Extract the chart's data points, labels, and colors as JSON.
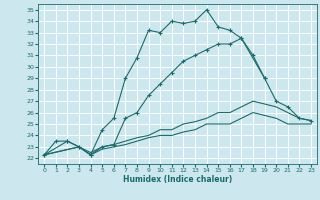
{
  "xlabel": "Humidex (Indice chaleur)",
  "background_color": "#cce8ee",
  "grid_color": "#ffffff",
  "line_color": "#1a6b6b",
  "xlim": [
    -0.5,
    23.5
  ],
  "ylim": [
    21.5,
    35.5
  ],
  "xticks": [
    0,
    1,
    2,
    3,
    4,
    5,
    6,
    7,
    8,
    9,
    10,
    11,
    12,
    13,
    14,
    15,
    16,
    17,
    18,
    19,
    20,
    21,
    22,
    23
  ],
  "yticks": [
    22,
    23,
    24,
    25,
    26,
    27,
    28,
    29,
    30,
    31,
    32,
    33,
    34,
    35
  ],
  "series": [
    {
      "x": [
        0,
        1,
        2,
        3,
        4,
        5,
        6,
        7,
        8,
        9,
        10,
        11,
        12,
        13,
        14,
        15,
        16,
        17,
        18,
        19
      ],
      "y": [
        22.3,
        23.5,
        23.5,
        23.0,
        22.3,
        24.5,
        25.5,
        29.0,
        30.8,
        33.2,
        33.0,
        34.0,
        33.8,
        34.0,
        35.0,
        33.5,
        33.2,
        32.5,
        31.0,
        29.0
      ],
      "marker": true,
      "linestyle": "-"
    },
    {
      "x": [
        0,
        2,
        3,
        4,
        5,
        6,
        7,
        8,
        9,
        10,
        11,
        12,
        13,
        14,
        15,
        16,
        17,
        19,
        20,
        21,
        22,
        23
      ],
      "y": [
        22.3,
        23.5,
        23.0,
        22.3,
        23.0,
        23.2,
        25.5,
        26.0,
        27.5,
        28.5,
        29.5,
        30.5,
        31.0,
        31.5,
        32.0,
        32.0,
        32.5,
        29.0,
        27.0,
        26.5,
        25.5,
        25.3
      ],
      "marker": true,
      "linestyle": "-"
    },
    {
      "x": [
        0,
        3,
        4,
        5,
        6,
        7,
        8,
        9,
        10,
        11,
        12,
        13,
        14,
        15,
        16,
        17,
        18,
        20,
        21,
        22,
        23
      ],
      "y": [
        22.3,
        23.0,
        22.5,
        23.0,
        23.2,
        23.5,
        23.8,
        24.0,
        24.5,
        24.5,
        25.0,
        25.2,
        25.5,
        26.0,
        26.0,
        26.5,
        27.0,
        26.5,
        26.0,
        25.5,
        25.3
      ],
      "marker": false,
      "linestyle": "-"
    },
    {
      "x": [
        0,
        3,
        4,
        5,
        6,
        7,
        8,
        9,
        10,
        11,
        12,
        13,
        14,
        15,
        16,
        17,
        18,
        20,
        21,
        22,
        23
      ],
      "y": [
        22.3,
        23.0,
        22.3,
        22.8,
        23.0,
        23.2,
        23.5,
        23.8,
        24.0,
        24.0,
        24.3,
        24.5,
        25.0,
        25.0,
        25.0,
        25.5,
        26.0,
        25.5,
        25.0,
        25.0,
        25.0
      ],
      "marker": false,
      "linestyle": "-"
    }
  ]
}
